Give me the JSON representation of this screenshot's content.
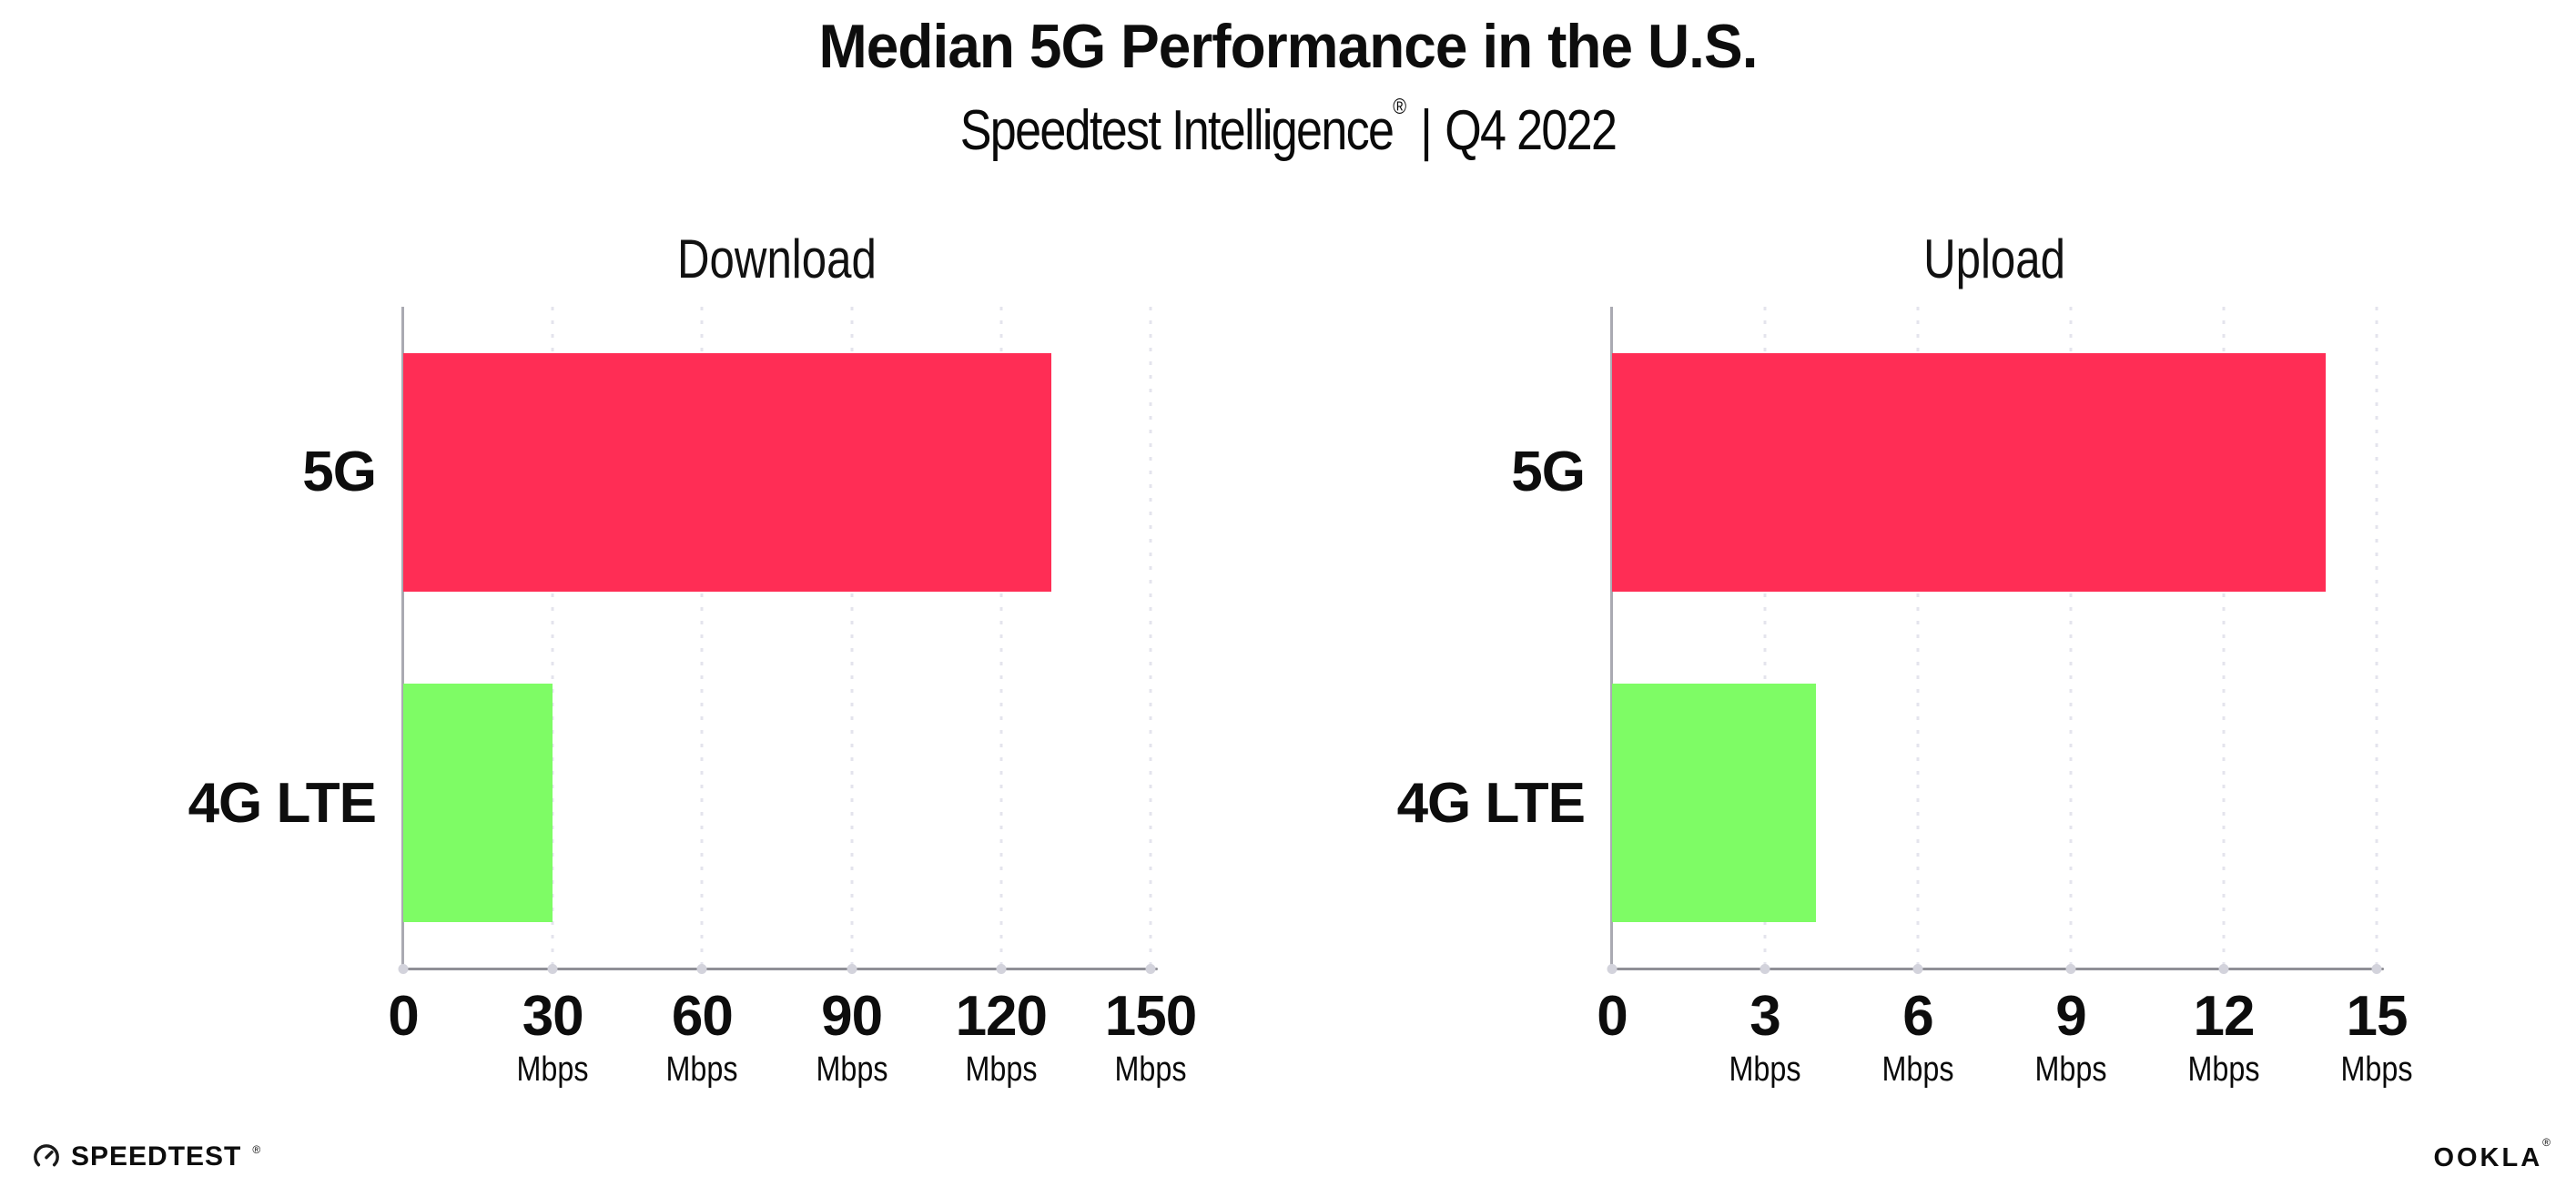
{
  "page": {
    "background": "#ffffff"
  },
  "header": {
    "title": "Median 5G Performance in the U.S.",
    "subtitle_brand": "Speedtest Intelligence",
    "subtitle_registered": "®",
    "subtitle_separator": "|",
    "subtitle_period": "Q4 2022"
  },
  "chart_data": [
    {
      "type": "bar",
      "orientation": "horizontal",
      "title": "Download",
      "categories": [
        "5G",
        "4G LTE"
      ],
      "values": [
        130,
        30
      ],
      "unit": "Mbps",
      "bar_colors": [
        "#ff2d55",
        "#7efc65"
      ],
      "xlim": [
        0,
        150
      ],
      "xticks": [
        0,
        30,
        60,
        90,
        120,
        150
      ],
      "grid": "vertical-dotted",
      "legend": "none"
    },
    {
      "type": "bar",
      "orientation": "horizontal",
      "title": "Upload",
      "categories": [
        "5G",
        "4G LTE"
      ],
      "values": [
        14,
        4
      ],
      "unit": "Mbps",
      "bar_colors": [
        "#ff2d55",
        "#7efc65"
      ],
      "xlim": [
        0,
        15
      ],
      "xticks": [
        0,
        3,
        6,
        9,
        12,
        15
      ],
      "grid": "vertical-dotted",
      "legend": "none"
    }
  ],
  "footer": {
    "speedtest_icon": "speedometer-gauge-icon",
    "speedtest_text": "SPEEDTEST",
    "speedtest_registered": "®",
    "ookla_text": "OOKLA",
    "ookla_registered": "®"
  },
  "colors": {
    "bar_5g": "#ff2d55",
    "bar_4g_lte": "#7efc65",
    "gridline": "#e4e4ed",
    "x_axis_line": "#8f8f96",
    "y_axis_line": "#aaaab2",
    "axis_tick_dot": "#d3d3dc",
    "text": "#0d0d0d"
  }
}
